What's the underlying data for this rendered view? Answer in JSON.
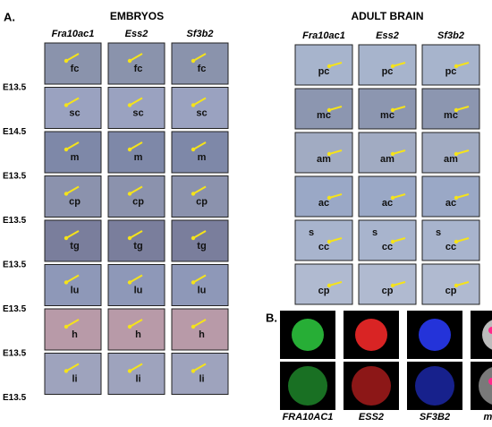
{
  "panel_a": {
    "label": "A.",
    "embryos": {
      "title": "EMBRYOS",
      "columns": [
        "Fra10ac1",
        "Ess2",
        "Sf3b2"
      ],
      "rows": [
        {
          "stage": "E13.5",
          "cells": [
            "fc",
            "fc",
            "fc"
          ]
        },
        {
          "stage": "E14.5",
          "cells": [
            "sc",
            "sc",
            "sc"
          ]
        },
        {
          "stage": "E13.5",
          "cells": [
            "m",
            "m",
            "m"
          ]
        },
        {
          "stage": "E13.5",
          "cells": [
            "cp",
            "cp",
            "cp"
          ]
        },
        {
          "stage": "E13.5",
          "cells": [
            "tg",
            "tg",
            "tg"
          ]
        },
        {
          "stage": "E13.5",
          "cells": [
            "lu",
            "lu",
            "lu"
          ]
        },
        {
          "stage": "E13.5",
          "cells": [
            "h",
            "h",
            "h"
          ]
        },
        {
          "stage": "E13.5",
          "cells": [
            "li",
            "li",
            "li"
          ]
        }
      ]
    },
    "adult_brain": {
      "title": "ADULT BRAIN",
      "columns": [
        "Fra10ac1",
        "Ess2",
        "Sf3b2"
      ],
      "rows": [
        {
          "cells": [
            [
              "pc"
            ],
            [
              "pc"
            ],
            [
              "pc"
            ]
          ]
        },
        {
          "cells": [
            [
              "mc"
            ],
            [
              "mc"
            ],
            [
              "mc"
            ]
          ]
        },
        {
          "cells": [
            [
              "am"
            ],
            [
              "am"
            ],
            [
              "am"
            ]
          ]
        },
        {
          "cells": [
            [
              "ac"
            ],
            [
              "ac"
            ],
            [
              "ac"
            ]
          ]
        },
        {
          "cells": [
            [
              "s",
              "cc"
            ],
            [
              "s",
              "cc"
            ],
            [
              "s",
              "cc"
            ]
          ]
        },
        {
          "cells": [
            [
              "cp"
            ],
            [
              "cp"
            ],
            [
              "cp"
            ]
          ]
        }
      ]
    }
  },
  "panel_b": {
    "label": "B.",
    "columns": [
      "FRA10AC1",
      "ESS2",
      "SF3B2",
      "merge"
    ]
  }
}
